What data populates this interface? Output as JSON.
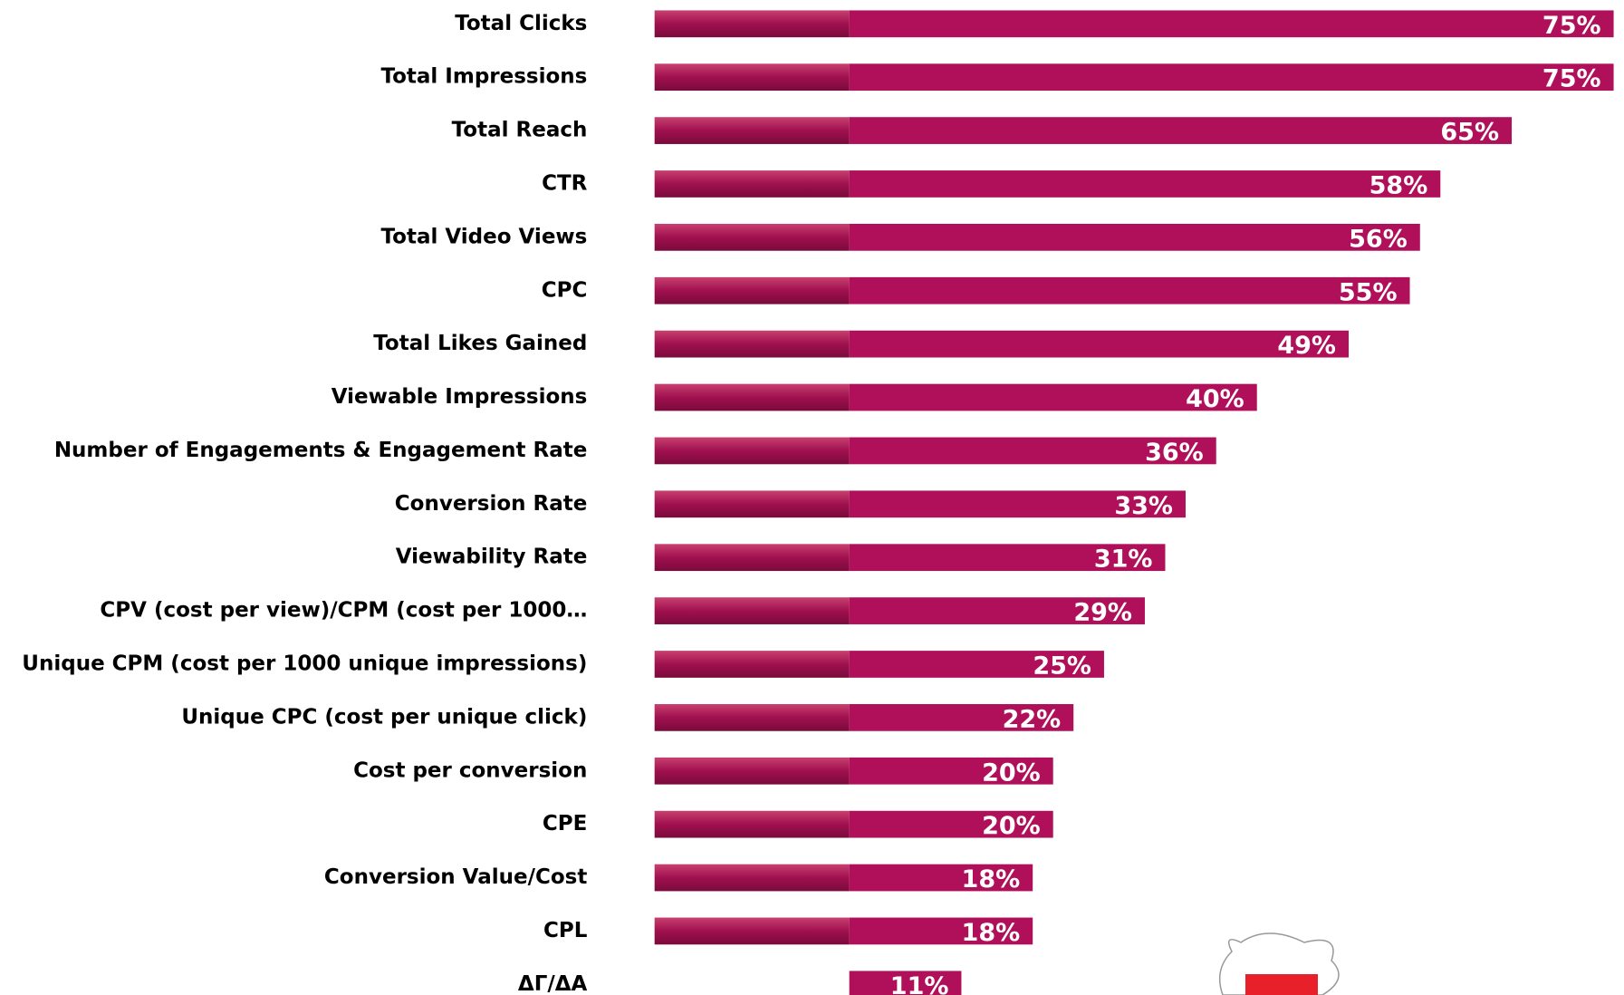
{
  "chart_data": {
    "type": "bar",
    "orientation": "horizontal",
    "color": "#b0105a",
    "categories": [
      "Total Clicks",
      "Total Impressions",
      "Total Reach",
      "CTR",
      "Total Video Views",
      "CPC",
      "Total Likes Gained",
      "Viewable Impressions",
      "Number of Engagements & Engagement Rate",
      "Conversion Rate",
      "Viewability Rate",
      "CPV (cost per view)/CPM (cost per 1000…",
      "Unique CPM (cost per 1000 unique impressions)",
      "Unique CPC (cost per unique click)",
      "Cost per conversion",
      "CPE",
      "Conversion Value/Cost",
      "CPL",
      "ΔΓ/ΔΑ"
    ],
    "values": [
      75,
      75,
      65,
      58,
      56,
      55,
      49,
      40,
      36,
      33,
      31,
      29,
      25,
      22,
      20,
      20,
      18,
      18,
      11
    ],
    "value_labels": [
      "75%",
      "75%",
      "65%",
      "58%",
      "56%",
      "55%",
      "49%",
      "40%",
      "36%",
      "33%",
      "31%",
      "29%",
      "25%",
      "22%",
      "20%",
      "20%",
      "18%",
      "18%",
      "11%"
    ]
  }
}
